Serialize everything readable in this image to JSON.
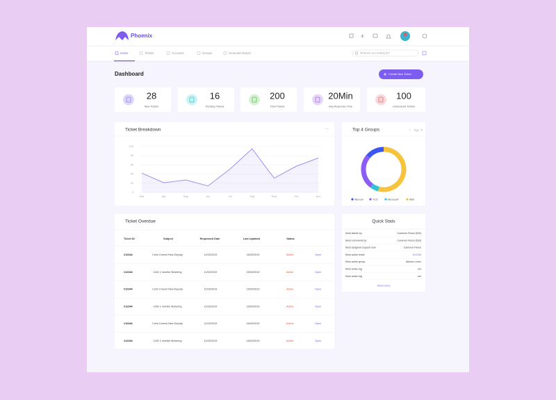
{
  "header": {
    "brand": "Phoenix"
  },
  "nav": {
    "items": [
      "Home",
      "Tickets",
      "Accounts",
      "Groups",
      "Generate Report"
    ],
    "search_placeholder": "What are you looking for?"
  },
  "page": {
    "title": "Dashboard",
    "button": "Create New Ticket"
  },
  "stats": [
    {
      "value": 28,
      "label": "New Tickets",
      "color": "#8a7cf0",
      "bg": "#ddd8fa"
    },
    {
      "value": 16,
      "label": "Pending Tickets",
      "color": "#3cc3c9",
      "bg": "#cdf2f3"
    },
    {
      "value": 200,
      "label": "Total Tickets",
      "color": "#5bbf5a",
      "bg": "#d6f1d5"
    },
    {
      "value": "20Min",
      "label": "Avg Response Time",
      "color": "#a06ae8",
      "bg": "#e6d8f8"
    },
    {
      "value": 100,
      "label": "Unresolved Tickets",
      "color": "#e86a6a",
      "bg": "#f9d9d9"
    }
  ],
  "ticket_breakdown": {
    "type": "line",
    "title": "Ticket Breakdown",
    "categories": [
      "Mar",
      "Apr",
      "May",
      "Jun",
      "Jul",
      "Aug",
      "Sept",
      "Oct",
      "Nov"
    ],
    "values": [
      42,
      21,
      27,
      14,
      51,
      95,
      31,
      57,
      75
    ],
    "ylim": [
      0,
      100
    ],
    "yticks": [
      0,
      20,
      40,
      60,
      80,
      100
    ],
    "grid": true,
    "color": "#9d90ee"
  },
  "top_groups": {
    "type": "pie",
    "title": "Top 4 Groups",
    "nav_label": "Tags",
    "categories": [
      "Altorum",
      "TCS",
      "Microsoft",
      "IBM"
    ],
    "values": [
      14,
      26,
      6,
      54
    ],
    "colors": [
      "#3d56f0",
      "#8b5cf6",
      "#2ec4d6",
      "#f7c23c"
    ]
  },
  "ticket_overdue": {
    "title": "Ticket Overdue",
    "columns": [
      "Ticket ID",
      "Subject",
      "Requested Date",
      "Last Updated",
      "Status"
    ],
    "rows": [
      [
        "#12344",
        "Colin Creech New Deputy",
        "11/02/2019",
        "16/02/2019",
        "Active",
        "Open"
      ],
      [
        "#12344",
        "CAD 1 monitor flickering",
        "11/02/2019",
        "16/02/2019",
        "Active",
        "Open"
      ],
      [
        "#12344",
        "Colin Creech New Deputy",
        "11/02/2019",
        "16/02/2019",
        "Active",
        "Open"
      ],
      [
        "#12344",
        "CAD 1 monitor flickering",
        "11/02/2019",
        "16/02/2019",
        "Active",
        "Open"
      ],
      [
        "#12344",
        "Colin Creech New Deputy",
        "11/02/2019",
        "16/02/2019",
        "Active",
        "Open"
      ],
      [
        "#12344",
        "CAD 1 monitor flickering",
        "11/02/2019",
        "16/02/2019",
        "Active",
        "Open"
      ]
    ]
  },
  "quick_stats": {
    "title": "Quick Stats",
    "rows": [
      [
        "Most tickets by",
        "Cameron Fiesol (530)"
      ],
      [
        "Most comments by",
        "Cameron Fiesol (530)"
      ],
      [
        "Most assigned support user",
        "Cameron Fiesol"
      ],
      [
        "Most active ticket",
        "#12345"
      ],
      [
        "Most active group",
        "Altorum Lelen"
      ],
      [
        "Most active tag",
        ".net"
      ],
      [
        "Most active tag",
        ".net"
      ]
    ],
    "more": "Show more"
  }
}
